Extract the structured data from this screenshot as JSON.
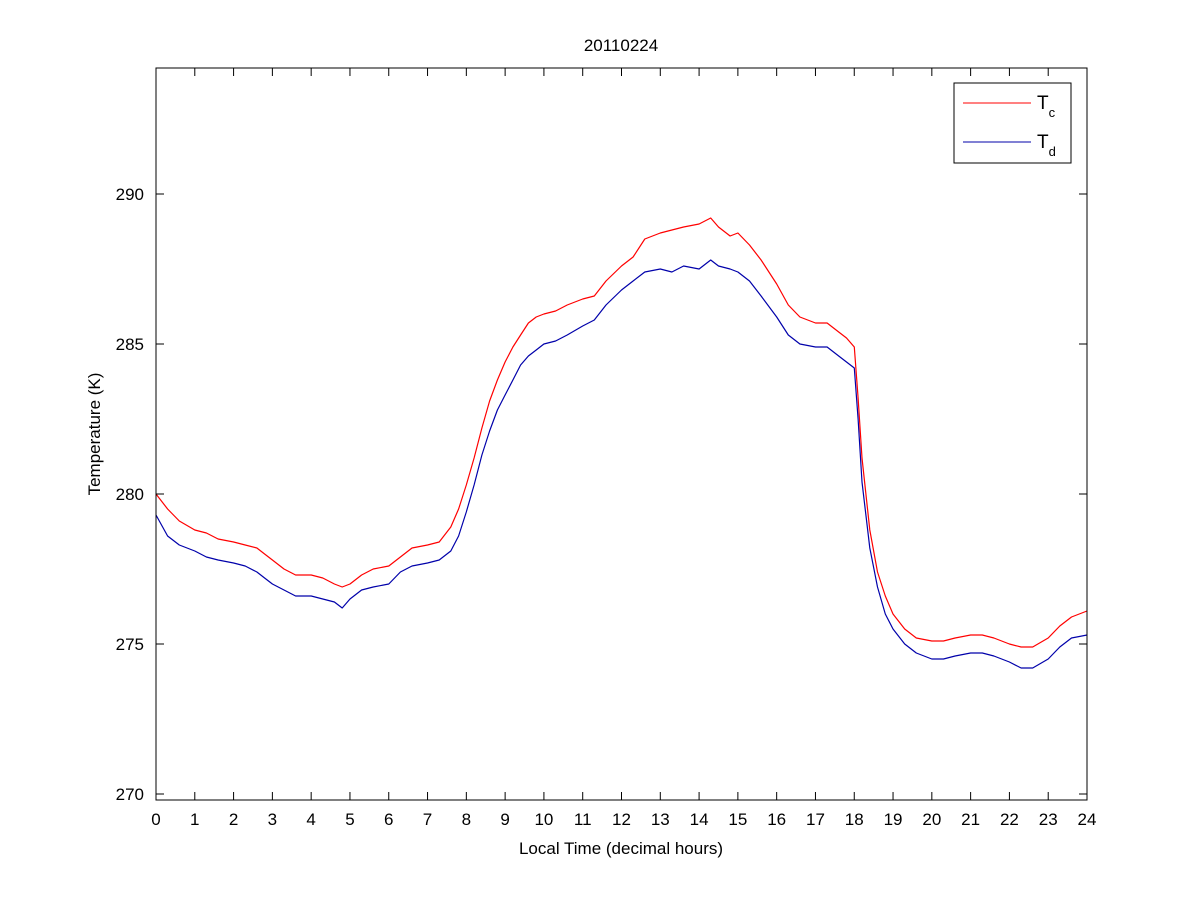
{
  "chart_data": {
    "type": "line",
    "title": "20110224",
    "xlabel": "Local Time (decimal hours)",
    "ylabel": "Temperature (K)",
    "xlim": [
      0,
      24
    ],
    "ylim": [
      269.8,
      294.2
    ],
    "xticks": [
      0,
      1,
      2,
      3,
      4,
      5,
      6,
      7,
      8,
      9,
      10,
      11,
      12,
      13,
      14,
      15,
      16,
      17,
      18,
      19,
      20,
      21,
      22,
      23,
      24
    ],
    "yticks": [
      270,
      275,
      280,
      285,
      290
    ],
    "grid": false,
    "legend": {
      "placement": "top-right",
      "entries": [
        {
          "main": "T",
          "sub": "c",
          "color": "#ff0000"
        },
        {
          "main": "T",
          "sub": "d",
          "color": "#0000aa"
        }
      ]
    },
    "series": [
      {
        "color": "#ff0000",
        "x": [
          0,
          0.3,
          0.6,
          1.0,
          1.3,
          1.6,
          2.0,
          2.3,
          2.6,
          2.8,
          3.0,
          3.3,
          3.6,
          4.0,
          4.3,
          4.6,
          4.8,
          5.0,
          5.3,
          5.6,
          6.0,
          6.3,
          6.6,
          7.0,
          7.3,
          7.6,
          7.8,
          8.0,
          8.2,
          8.4,
          8.6,
          8.8,
          9.0,
          9.2,
          9.4,
          9.6,
          9.8,
          10.0,
          10.3,
          10.6,
          11.0,
          11.3,
          11.6,
          12.0,
          12.3,
          12.6,
          13.0,
          13.3,
          13.6,
          14.0,
          14.3,
          14.5,
          14.8,
          15.0,
          15.3,
          15.6,
          16.0,
          16.3,
          16.6,
          17.0,
          17.3,
          17.6,
          17.8,
          18.0,
          18.1,
          18.2,
          18.4,
          18.6,
          18.8,
          19.0,
          19.3,
          19.6,
          20.0,
          20.3,
          20.6,
          21.0,
          21.3,
          21.6,
          22.0,
          22.3,
          22.6,
          23.0,
          23.3,
          23.6,
          24.0
        ],
        "values": [
          280.0,
          279.5,
          279.1,
          278.8,
          278.7,
          278.5,
          278.4,
          278.3,
          278.2,
          278.0,
          277.8,
          277.5,
          277.3,
          277.3,
          277.2,
          277.0,
          276.9,
          277.0,
          277.3,
          277.5,
          277.6,
          277.9,
          278.2,
          278.3,
          278.4,
          278.9,
          279.5,
          280.3,
          281.2,
          282.2,
          283.1,
          283.8,
          284.4,
          284.9,
          285.3,
          285.7,
          285.9,
          286.0,
          286.1,
          286.3,
          286.5,
          286.6,
          287.1,
          287.6,
          287.9,
          288.5,
          288.7,
          288.8,
          288.9,
          289.0,
          289.2,
          288.9,
          288.6,
          288.7,
          288.3,
          287.8,
          287.0,
          286.3,
          285.9,
          285.7,
          285.7,
          285.4,
          285.2,
          284.9,
          283.2,
          281.2,
          278.8,
          277.4,
          276.6,
          276.0,
          275.5,
          275.2,
          275.1,
          275.1,
          275.2,
          275.3,
          275.3,
          275.2,
          275.0,
          274.9,
          274.9,
          275.2,
          275.6,
          275.9,
          276.1
        ]
      },
      {
        "color": "#0000aa",
        "x": [
          0,
          0.3,
          0.6,
          1.0,
          1.3,
          1.6,
          2.0,
          2.3,
          2.6,
          2.8,
          3.0,
          3.3,
          3.6,
          4.0,
          4.3,
          4.6,
          4.8,
          5.0,
          5.3,
          5.6,
          6.0,
          6.3,
          6.6,
          7.0,
          7.3,
          7.6,
          7.8,
          8.0,
          8.2,
          8.4,
          8.6,
          8.8,
          9.0,
          9.2,
          9.4,
          9.6,
          9.8,
          10.0,
          10.3,
          10.6,
          11.0,
          11.3,
          11.6,
          12.0,
          12.3,
          12.6,
          13.0,
          13.3,
          13.6,
          14.0,
          14.3,
          14.5,
          14.8,
          15.0,
          15.3,
          15.6,
          16.0,
          16.3,
          16.6,
          17.0,
          17.3,
          17.6,
          17.8,
          18.0,
          18.1,
          18.2,
          18.4,
          18.6,
          18.8,
          19.0,
          19.3,
          19.6,
          20.0,
          20.3,
          20.6,
          21.0,
          21.3,
          21.6,
          22.0,
          22.3,
          22.6,
          23.0,
          23.3,
          23.6,
          24.0
        ],
        "values": [
          279.3,
          278.6,
          278.3,
          278.1,
          277.9,
          277.8,
          277.7,
          277.6,
          277.4,
          277.2,
          277.0,
          276.8,
          276.6,
          276.6,
          276.5,
          276.4,
          276.2,
          276.5,
          276.8,
          276.9,
          277.0,
          277.4,
          277.6,
          277.7,
          277.8,
          278.1,
          278.6,
          279.4,
          280.3,
          281.3,
          282.1,
          282.8,
          283.3,
          283.8,
          284.3,
          284.6,
          284.8,
          285.0,
          285.1,
          285.3,
          285.6,
          285.8,
          286.3,
          286.8,
          287.1,
          287.4,
          287.5,
          287.4,
          287.6,
          287.5,
          287.8,
          287.6,
          287.5,
          287.4,
          287.1,
          286.6,
          285.9,
          285.3,
          285.0,
          284.9,
          284.9,
          284.6,
          284.4,
          284.2,
          282.5,
          280.4,
          278.2,
          276.9,
          276.0,
          275.5,
          275.0,
          274.7,
          274.5,
          274.5,
          274.6,
          274.7,
          274.7,
          274.6,
          274.4,
          274.2,
          274.2,
          274.5,
          274.9,
          275.2,
          275.3
        ]
      }
    ]
  }
}
